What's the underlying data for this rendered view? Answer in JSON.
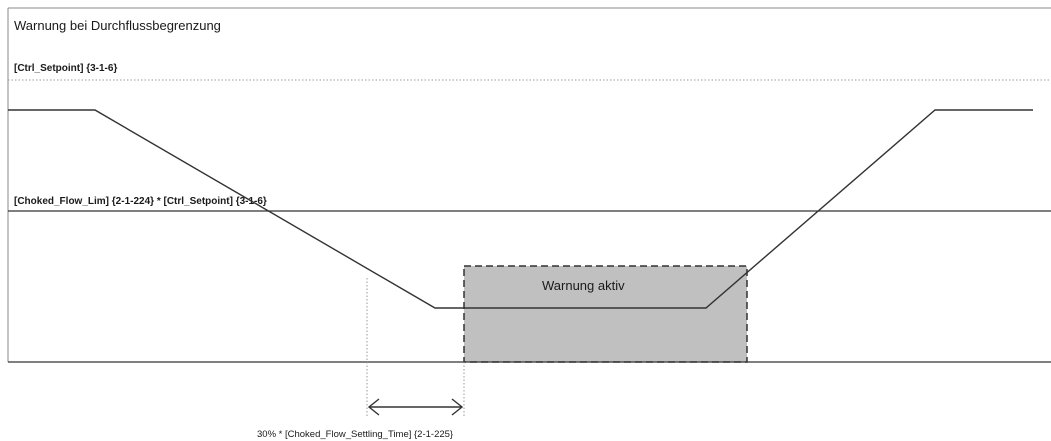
{
  "title": "Warnung bei Durchflussbegrenzung",
  "labels": {
    "setpoint": "[Ctrl_Setpoint] {3-1-6}",
    "limit": "[Choked_Flow_Lim] {2-1-224} * [Ctrl_Setpoint] {3-1-6}",
    "warning": "Warnung aktiv",
    "settling_time": "30% * [Choked_Flow_Settling_Time] {2-1-225}"
  },
  "colors": {
    "line": "#333333",
    "warning_fill": "#c0c0c0",
    "dotted": "#9a9a9a",
    "frame": "#888888"
  }
}
